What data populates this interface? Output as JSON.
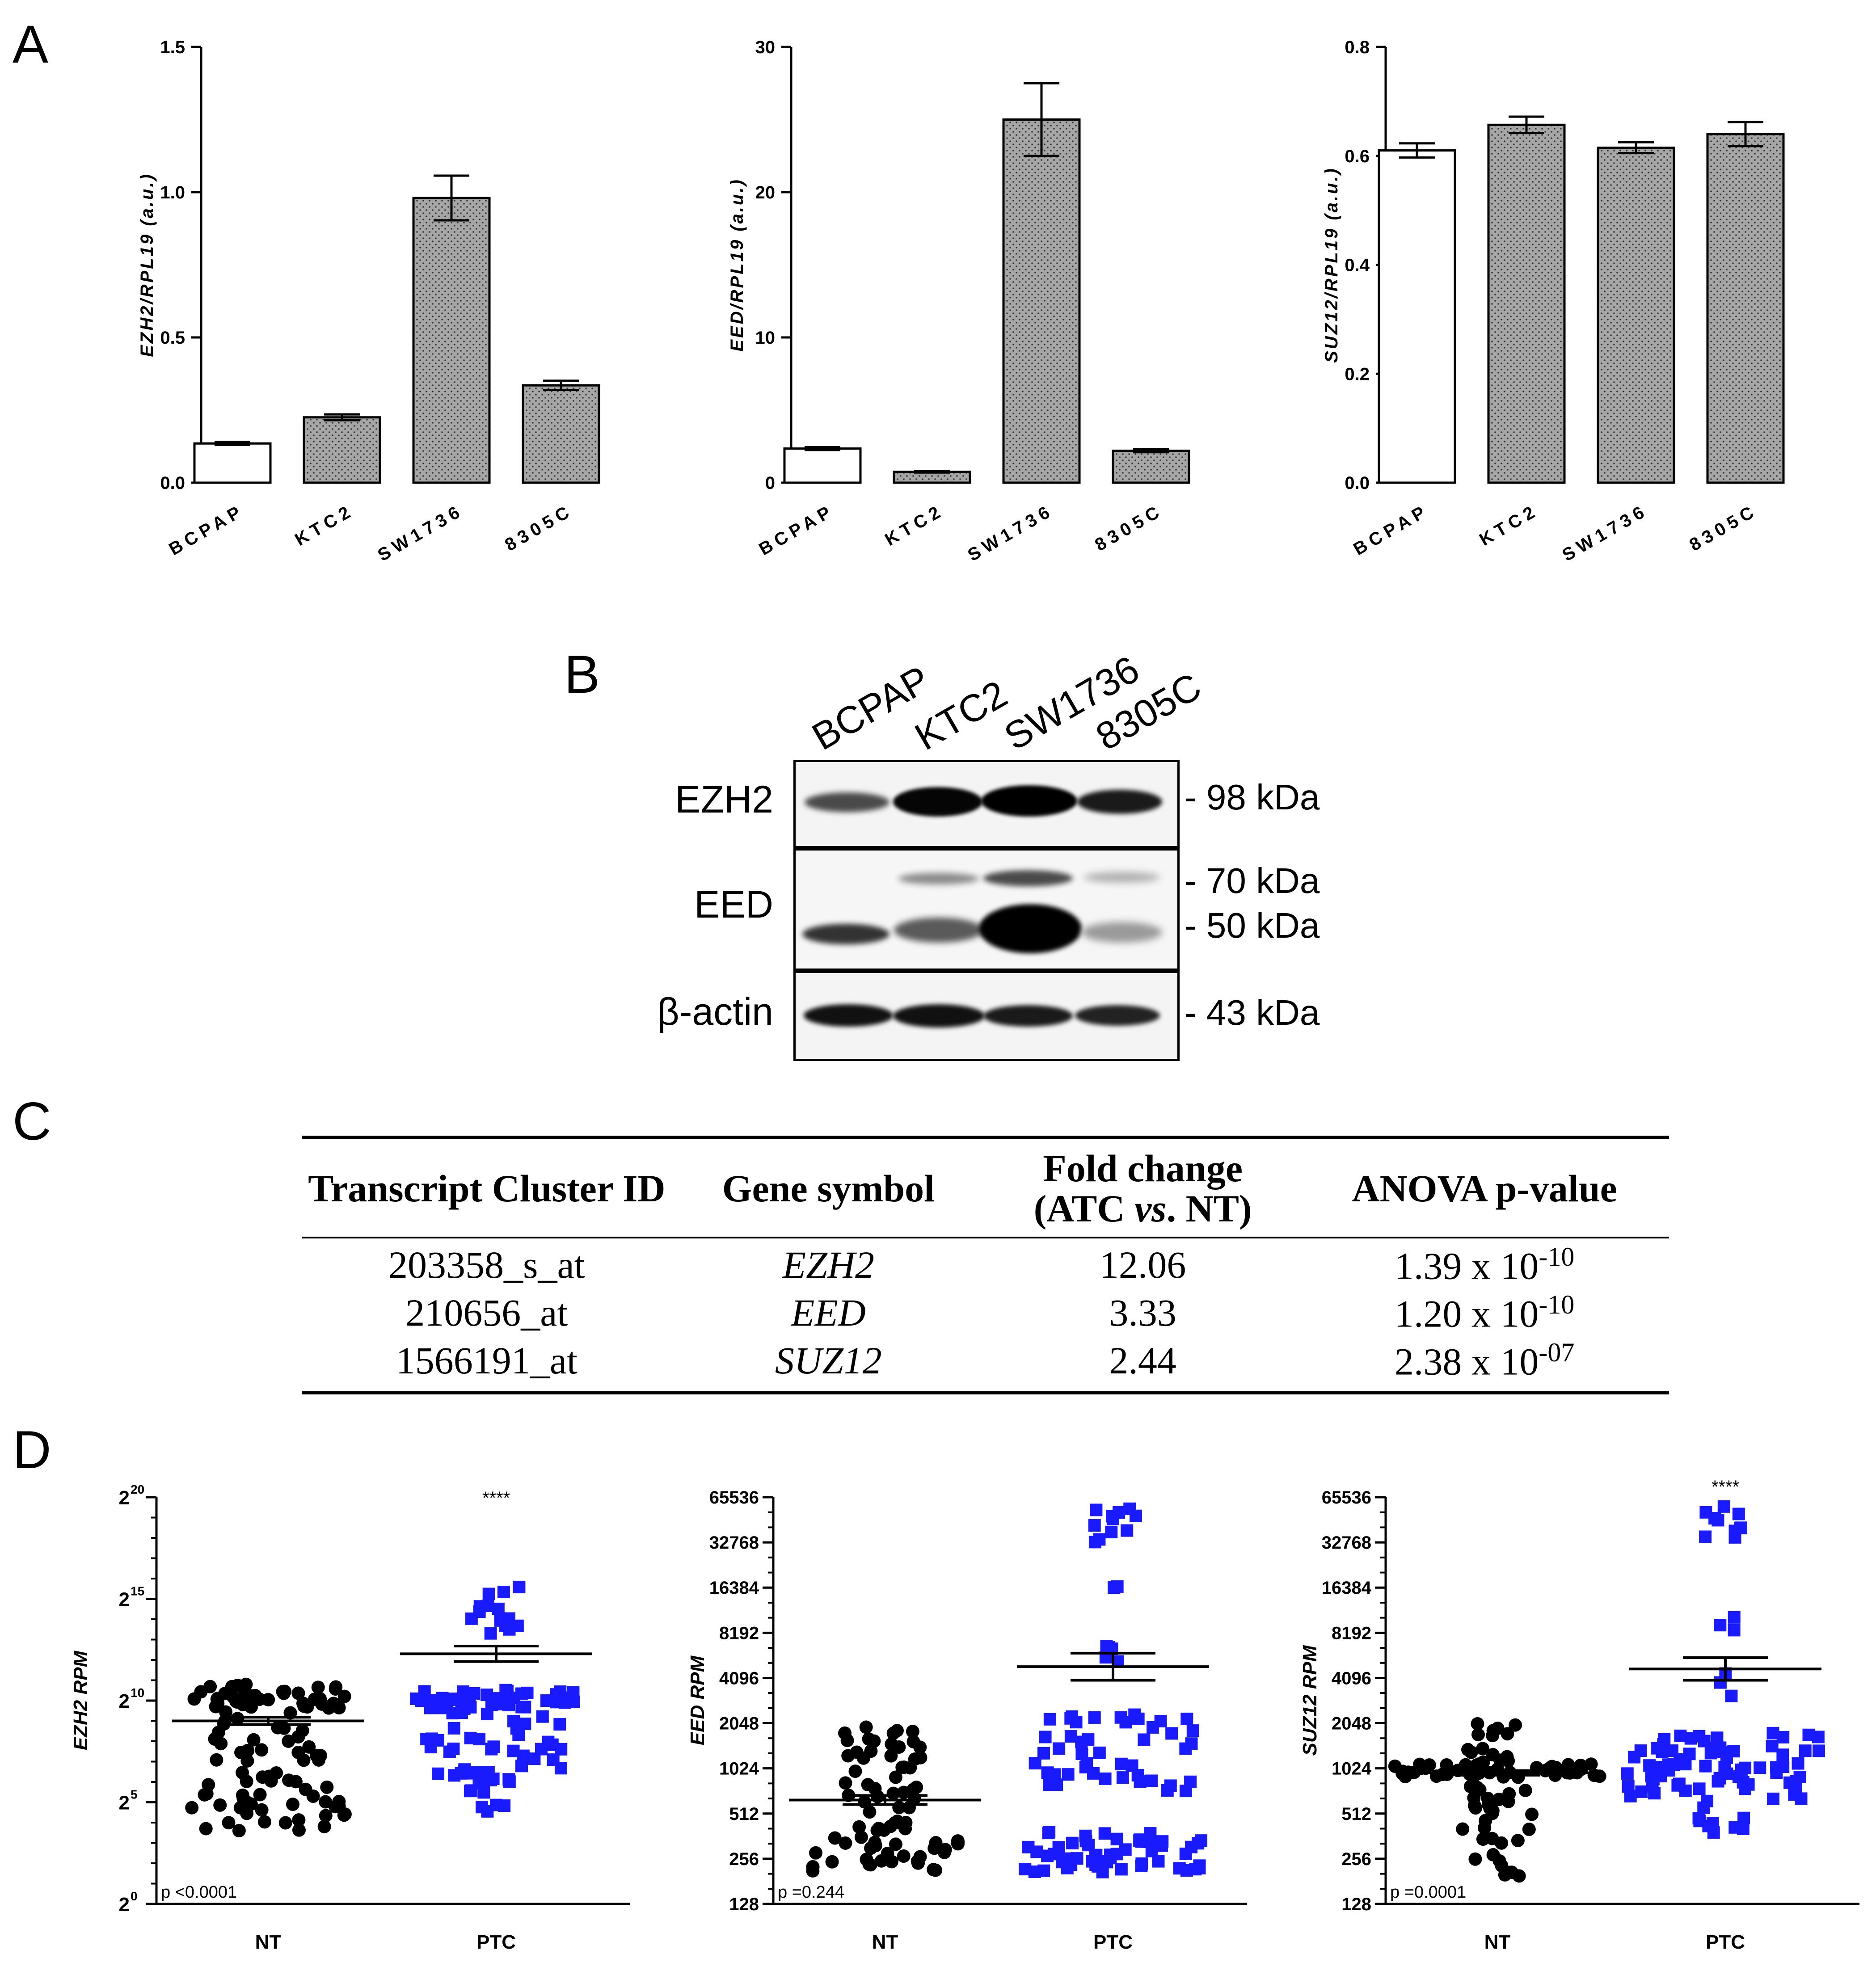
{
  "panels": {
    "a": "A",
    "b": "B",
    "c": "C",
    "d": "D"
  },
  "colors": {
    "bar_open": "#ffffff",
    "bar_dotted": "#a6a6a6",
    "nt_points": "#000000",
    "ptc_points": "#1a1aff"
  },
  "chart_data": [
    {
      "type": "bar",
      "panel": "A1",
      "categories": [
        "BCPAP",
        "KTC2",
        "SW1736",
        "8305C"
      ],
      "values": [
        0.135,
        0.225,
        0.98,
        0.335
      ],
      "errors": [
        0.005,
        0.01,
        0.077,
        0.016
      ],
      "ylabel": "EZH2/RPL19 (a.u.)",
      "ylim": [
        0,
        1.5
      ],
      "yticks": [
        "0.0",
        "0.5",
        "1.0",
        "1.5"
      ],
      "ytick_values": [
        0,
        0.5,
        1.0,
        1.5
      ]
    },
    {
      "type": "bar",
      "panel": "A2",
      "categories": [
        "BCPAP",
        "KTC2",
        "SW1736",
        "8305C"
      ],
      "values": [
        2.35,
        0.75,
        25.0,
        2.2
      ],
      "errors": [
        0.1,
        0.05,
        2.5,
        0.1
      ],
      "ylabel": "EED/RPL19 (a.u.)",
      "ylim": [
        0,
        30
      ],
      "yticks": [
        "0",
        "10",
        "20",
        "30"
      ],
      "ytick_values": [
        0,
        10,
        20,
        30
      ]
    },
    {
      "type": "bar",
      "panel": "A3",
      "categories": [
        "BCPAP",
        "KTC2",
        "SW1736",
        "8305C"
      ],
      "values": [
        0.61,
        0.657,
        0.615,
        0.64
      ],
      "errors": [
        0.013,
        0.015,
        0.01,
        0.022
      ],
      "ylabel": "SUZ12/RPL19 (a.u.)",
      "ylim": [
        0,
        0.8
      ],
      "yticks": [
        "0.0",
        "0.2",
        "0.4",
        "0.6",
        "0.8"
      ],
      "ytick_values": [
        0,
        0.2,
        0.4,
        0.6,
        0.8
      ]
    },
    {
      "type": "scatter",
      "panel": "D1",
      "categories": [
        "NT",
        "PTC"
      ],
      "ylabel": "EZH2 RPM",
      "ylim_log2": [
        0,
        20
      ],
      "yticks": [
        {
          "base": "2",
          "exp": "0"
        },
        {
          "base": "2",
          "exp": "5"
        },
        {
          "base": "2",
          "exp": "10"
        },
        {
          "base": "2",
          "exp": "15"
        },
        {
          "base": "2",
          "exp": "20"
        }
      ],
      "ytick_values_log2": [
        0,
        5,
        10,
        15,
        20
      ],
      "mean_log2": [
        9.0,
        12.3
      ],
      "sem_log2": [
        0.18,
        0.38
      ],
      "stars": "****",
      "pvalue": "p <0.0001"
    },
    {
      "type": "scatter",
      "panel": "D2",
      "categories": [
        "NT",
        "PTC"
      ],
      "ylabel": "EED RPM",
      "ylim_log2": [
        7,
        16
      ],
      "yticks": [
        "128",
        "256",
        "512",
        "1024",
        "2048",
        "4096",
        "8192",
        "16384",
        "32768",
        "65536"
      ],
      "ytick_values_log2": [
        7,
        8,
        9,
        10,
        11,
        12,
        13,
        14,
        15,
        16
      ],
      "mean_log2": [
        9.3,
        12.25
      ],
      "sem_log2": [
        0.1,
        0.3
      ],
      "stars": "",
      "pvalue": "p =0.244"
    },
    {
      "type": "scatter",
      "panel": "D3",
      "categories": [
        "NT",
        "PTC"
      ],
      "ylabel": "SUZ12 RPM",
      "ylim_log2": [
        7,
        16
      ],
      "yticks": [
        "128",
        "256",
        "512",
        "1024",
        "2048",
        "4096",
        "8192",
        "16384",
        "32768",
        "65536"
      ],
      "ytick_values_log2": [
        7,
        8,
        9,
        10,
        11,
        12,
        13,
        14,
        15,
        16
      ],
      "mean_log2": [
        9.9,
        12.2
      ],
      "sem_log2": [
        0.05,
        0.25
      ],
      "stars": "****",
      "pvalue": "p =0.0001"
    }
  ],
  "western_blot": {
    "lanes": [
      "BCPAP",
      "KTC2",
      "SW1736",
      "8305C"
    ],
    "rows": [
      {
        "label": "EZH2",
        "markers": [
          "- 98 kDa"
        ]
      },
      {
        "label": "EED",
        "markers": [
          "- 70 kDa",
          "- 50 kDa"
        ]
      },
      {
        "label": "β-actin",
        "markers": [
          "- 43 kDa"
        ]
      }
    ]
  },
  "table": {
    "headers": {
      "cluster": "Transcript Cluster ID",
      "gene": "Gene symbol",
      "fold_line1": "Fold change",
      "fold_line2_a": "(ATC ",
      "fold_line2_b": "vs",
      "fold_line2_c": ". NT)",
      "anova": "ANOVA p-value"
    },
    "rows": [
      {
        "id": "203358_s_at",
        "gene": "EZH2",
        "fold": "12.06",
        "p_base": "1.39 x 10",
        "p_exp": "-10"
      },
      {
        "id": "210656_at",
        "gene": "EED",
        "fold": "3.33",
        "p_base": "1.20 x 10",
        "p_exp": "-10"
      },
      {
        "id": "1566191_at",
        "gene": "SUZ12",
        "fold": "2.44",
        "p_base": "2.38 x 10",
        "p_exp": "-07"
      }
    ]
  }
}
